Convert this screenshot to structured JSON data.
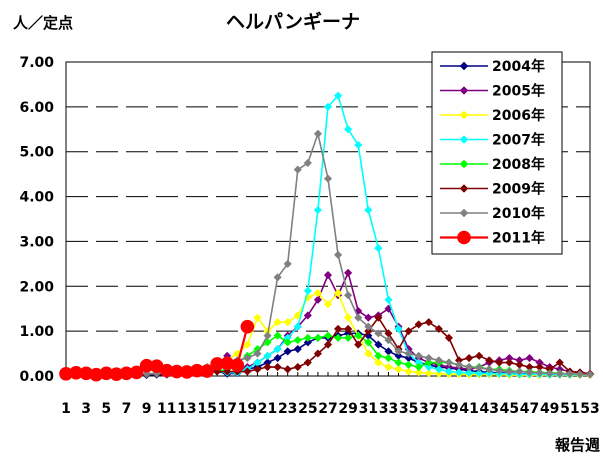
{
  "chart_data": {
    "type": "line",
    "title": "ヘルパンギーナ",
    "ylabel": "人／定点",
    "xlabel": "報告週",
    "ylim": [
      0,
      7
    ],
    "yticks": [
      "0.00",
      "1.00",
      "2.00",
      "3.00",
      "4.00",
      "5.00",
      "6.00",
      "7.00"
    ],
    "xticks": [
      "1",
      "3",
      "5",
      "7",
      "9",
      "11",
      "13",
      "15",
      "17",
      "19",
      "21",
      "23",
      "25",
      "27",
      "29",
      "31",
      "33",
      "35",
      "37",
      "39",
      "41",
      "43",
      "45",
      "47",
      "49",
      "51",
      "53"
    ],
    "x_range": [
      1,
      53
    ],
    "grid": "horizontal dashed",
    "legend_position": "top-right",
    "series": [
      {
        "name": "2004年",
        "color": "#000080",
        "marker": "diamond",
        "values": [
          0.03,
          0.03,
          0.02,
          0.03,
          0.02,
          0.03,
          0.02,
          0.02,
          0.02,
          0.03,
          0.03,
          0.04,
          0.05,
          0.06,
          0.08,
          0.1,
          0.05,
          0.06,
          0.15,
          0.2,
          0.3,
          0.4,
          0.55,
          0.6,
          0.75,
          0.85,
          0.85,
          0.9,
          0.95,
          0.95,
          0.9,
          0.7,
          0.55,
          0.45,
          0.4,
          0.3,
          0.25,
          0.2,
          0.18,
          0.15,
          0.12,
          0.1,
          0.08,
          0.07,
          0.06,
          0.05,
          0.05,
          0.04,
          0.03,
          0.03,
          0.03,
          0.03,
          0.03
        ]
      },
      {
        "name": "2005年",
        "color": "#800080",
        "marker": "diamond",
        "values": [
          0.02,
          0.02,
          0.02,
          0.03,
          0.03,
          0.03,
          0.02,
          0.03,
          0.04,
          0.05,
          0.05,
          0.06,
          0.07,
          0.08,
          0.1,
          0.15,
          0.45,
          0.1,
          0.2,
          0.3,
          0.45,
          0.6,
          0.9,
          1.1,
          1.35,
          1.7,
          2.25,
          1.8,
          2.3,
          1.45,
          1.3,
          1.35,
          1.5,
          1.1,
          0.6,
          0.4,
          0.3,
          0.25,
          0.2,
          0.18,
          0.15,
          0.2,
          0.3,
          0.35,
          0.4,
          0.35,
          0.4,
          0.3,
          0.2,
          0.15,
          0.1,
          0.08,
          0.05
        ]
      },
      {
        "name": "2006年",
        "color": "#ffff00",
        "marker": "diamond",
        "values": [
          0.02,
          0.02,
          0.02,
          0.02,
          0.02,
          0.03,
          0.03,
          0.04,
          0.04,
          0.05,
          0.06,
          0.08,
          0.1,
          0.15,
          0.2,
          0.25,
          0.35,
          0.5,
          0.7,
          1.3,
          1.0,
          1.2,
          1.2,
          1.35,
          1.75,
          1.85,
          1.6,
          1.85,
          1.3,
          0.9,
          0.5,
          0.3,
          0.2,
          0.15,
          0.1,
          0.08,
          0.06,
          0.05,
          0.04,
          0.04,
          0.03,
          0.03,
          0.03,
          0.03,
          0.02,
          0.02,
          0.02,
          0.02,
          0.02,
          0.02,
          0.02,
          0.02,
          0.02
        ]
      },
      {
        "name": "2007年",
        "color": "#00ffff",
        "marker": "diamond",
        "values": [
          0.02,
          0.02,
          0.02,
          0.02,
          0.03,
          0.03,
          0.03,
          0.04,
          0.04,
          0.05,
          0.05,
          0.06,
          0.07,
          0.08,
          0.1,
          0.1,
          0.08,
          0.07,
          0.15,
          0.3,
          0.45,
          0.6,
          0.85,
          1.1,
          1.9,
          3.7,
          6.0,
          6.25,
          5.5,
          5.15,
          3.7,
          2.85,
          1.7,
          1.05,
          0.5,
          0.3,
          0.2,
          0.15,
          0.1,
          0.08,
          0.07,
          0.06,
          0.06,
          0.05,
          0.05,
          0.04,
          0.04,
          0.04,
          0.03,
          0.03,
          0.03,
          0.03,
          0.03
        ]
      },
      {
        "name": "2008年",
        "color": "#00ff00",
        "marker": "diamond",
        "values": [
          0.03,
          0.03,
          0.03,
          0.03,
          0.03,
          0.04,
          0.04,
          0.04,
          0.05,
          0.05,
          0.05,
          0.06,
          0.06,
          0.07,
          0.08,
          0.1,
          0.15,
          0.3,
          0.45,
          0.6,
          0.75,
          0.9,
          0.75,
          0.8,
          0.85,
          0.85,
          0.9,
          0.85,
          0.85,
          0.9,
          0.75,
          0.45,
          0.4,
          0.3,
          0.25,
          0.2,
          0.3,
          0.3,
          0.3,
          0.25,
          0.2,
          0.2,
          0.15,
          0.15,
          0.12,
          0.1,
          0.1,
          0.08,
          0.07,
          0.06,
          0.05,
          0.05,
          0.04
        ]
      },
      {
        "name": "2009年",
        "color": "#800000",
        "marker": "diamond",
        "values": [
          0.03,
          0.03,
          0.03,
          0.03,
          0.03,
          0.03,
          0.04,
          0.04,
          0.04,
          0.05,
          0.05,
          0.05,
          0.06,
          0.07,
          0.08,
          0.1,
          0.1,
          0.1,
          0.1,
          0.15,
          0.2,
          0.2,
          0.15,
          0.2,
          0.3,
          0.5,
          0.7,
          1.05,
          1.05,
          0.7,
          1.0,
          1.3,
          0.95,
          0.6,
          1.0,
          1.15,
          1.2,
          1.05,
          0.85,
          0.35,
          0.4,
          0.45,
          0.35,
          0.3,
          0.3,
          0.25,
          0.2,
          0.2,
          0.15,
          0.3,
          0.1,
          0.08,
          0.05
        ]
      },
      {
        "name": "2010年",
        "color": "#808080",
        "marker": "diamond",
        "values": [
          0.03,
          0.03,
          0.03,
          0.03,
          0.04,
          0.04,
          0.04,
          0.05,
          0.05,
          0.06,
          0.07,
          0.08,
          0.1,
          0.15,
          0.2,
          0.25,
          0.3,
          0.35,
          0.4,
          0.5,
          0.9,
          2.2,
          2.5,
          4.6,
          4.75,
          5.4,
          4.4,
          2.7,
          1.8,
          1.3,
          1.1,
          0.95,
          0.8,
          0.55,
          0.5,
          0.45,
          0.4,
          0.35,
          0.3,
          0.25,
          0.2,
          0.18,
          0.15,
          0.12,
          0.1,
          0.1,
          0.08,
          0.07,
          0.06,
          0.05,
          0.05,
          0.04,
          0.03
        ]
      },
      {
        "name": "2011年",
        "color": "#ff0000",
        "marker": "circle",
        "values": [
          0.05,
          0.07,
          0.06,
          0.03,
          0.06,
          0.04,
          0.06,
          0.08,
          0.23,
          0.22,
          0.12,
          0.1,
          0.09,
          0.12,
          0.11,
          0.27,
          0.28,
          0.24,
          1.1
        ]
      }
    ]
  }
}
